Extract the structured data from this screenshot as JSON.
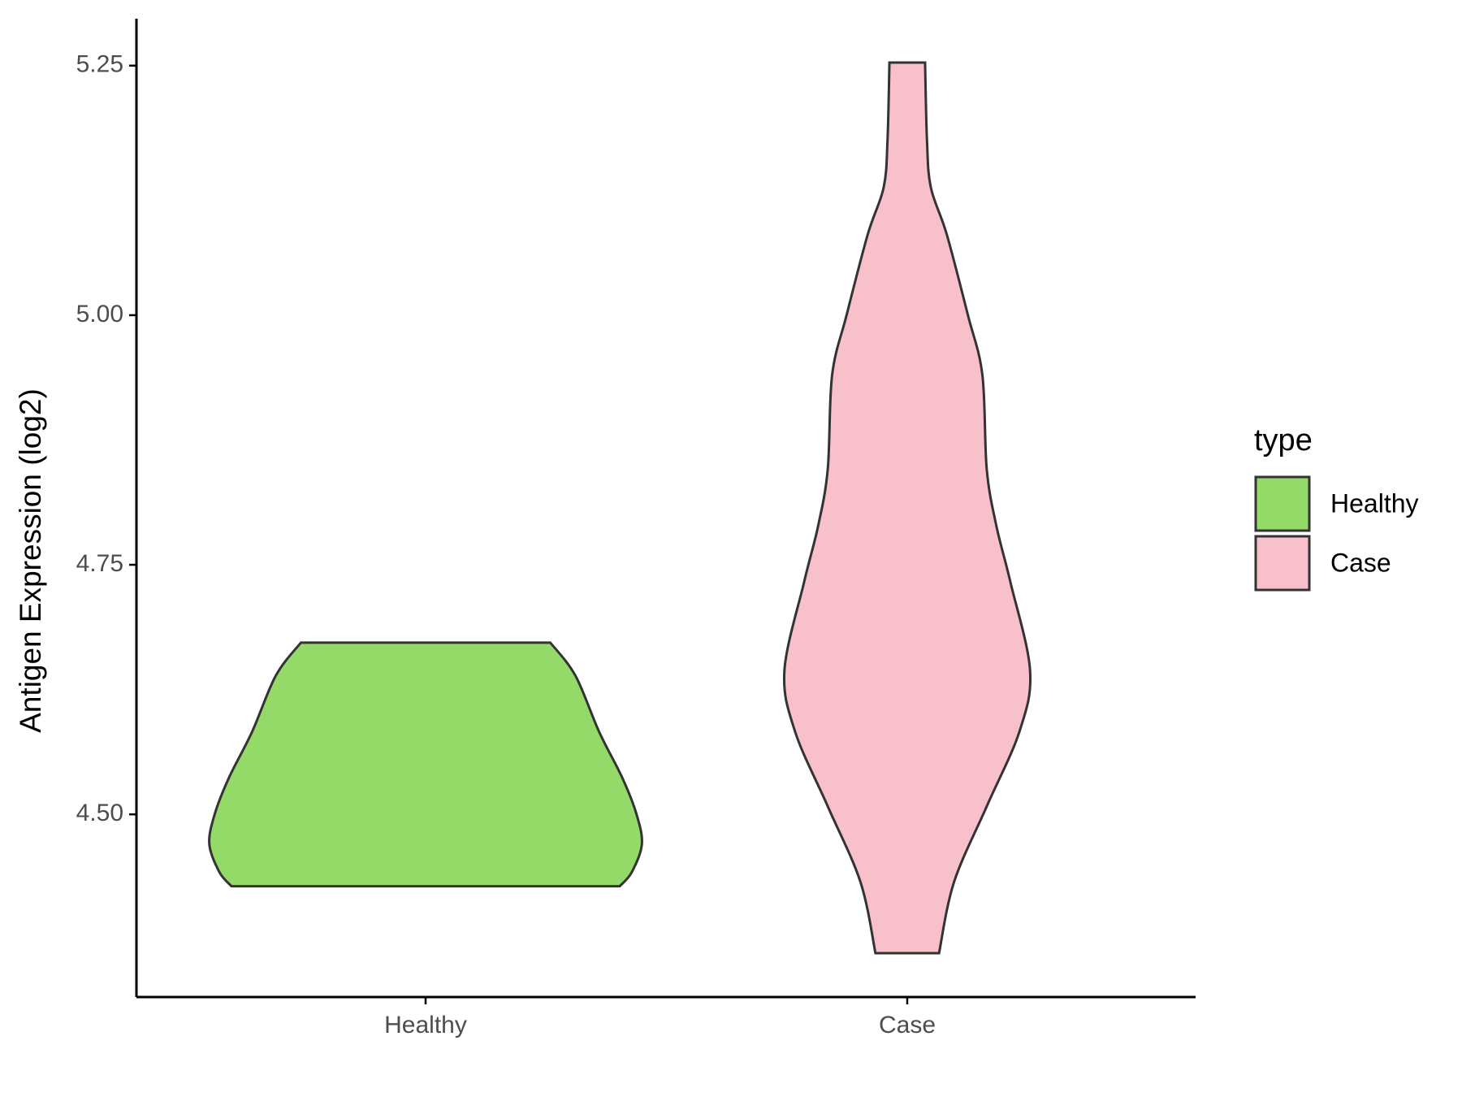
{
  "chart_data": {
    "type": "violin",
    "y_label": "Antigen Expression (log2)",
    "categories": [
      "Healthy",
      "Case"
    ],
    "legend_title": "type",
    "legend_position": "right",
    "series": [
      {
        "name": "Healthy",
        "color": "#93da69",
        "y": [
          4.428,
          4.442,
          4.47,
          4.5,
          4.536,
          4.583,
          4.639,
          4.672
        ],
        "density": [
          0.403,
          0.428,
          0.449,
          0.438,
          0.409,
          0.36,
          0.311,
          0.259
        ]
      },
      {
        "name": "Case",
        "color": "#f7c0cb",
        "y": [
          4.361,
          4.432,
          4.508,
          4.583,
          4.644,
          4.733,
          4.789,
          4.846,
          4.94,
          5.0,
          5.081,
          5.128,
          5.175,
          5.253
        ],
        "density": [
          0.066,
          0.097,
          0.165,
          0.233,
          0.255,
          0.214,
          0.185,
          0.165,
          0.156,
          0.126,
          0.082,
          0.049,
          0.041,
          0.037
        ]
      }
    ],
    "ylim": [
      4.317,
      5.297
    ],
    "yticks": [
      {
        "value": 4.5,
        "label": "4.50"
      },
      4.75,
      {
        "value": 5,
        "label": "5.00"
      },
      5.25
    ],
    "grid": false
  }
}
